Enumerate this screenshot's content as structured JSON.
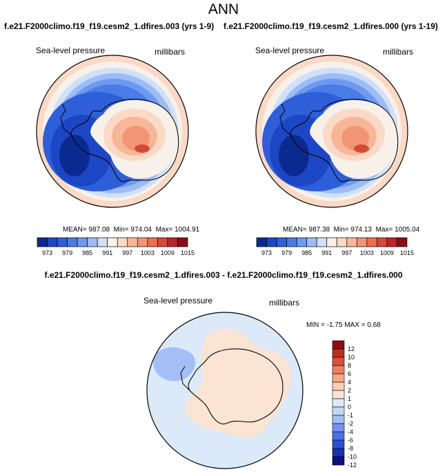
{
  "title": "ANN",
  "diff_title": "f.e21.F2000climo.f19_f19.cesm2_1.dfires.003 - f.e21.F2000climo.f19_f19.cesm2_1.dfires.000",
  "colors": {
    "pressure_scale": [
      "#0b2a91",
      "#1c46c4",
      "#2e5fd8",
      "#4a7ce6",
      "#6d9af0",
      "#9dbcf5",
      "#cfe0f8",
      "#f7f1ea",
      "#fbd9c7",
      "#f7b797",
      "#f29574",
      "#e8704f",
      "#d6493a",
      "#b8262c",
      "#8c0d18"
    ],
    "diff_scale": [
      "#0b0f80",
      "#1530b8",
      "#2850d8",
      "#4c6ee6",
      "#7393ee",
      "#a4bff5",
      "#c3d8f6",
      "#dbe9f9",
      "#fbe4d4",
      "#fbcdb3",
      "#f6a783",
      "#ee7f5c",
      "#db5037",
      "#c02a1f",
      "#8f0c12"
    ]
  },
  "chart_data": [
    {
      "type": "heatmap",
      "title": "f.e21.F2000climo.f19_f19.cesm2_1.dfires.003 (yrs 1-9)",
      "variable": "Sea-level pressure",
      "units": "millibars",
      "stats": {
        "mean_label": "MEAN=",
        "mean": "987.08",
        "min_label": "Min=",
        "min": "974.04",
        "max_label": "Max=",
        "max": "1004.91"
      },
      "colorbar_levels": [
        "973",
        "976",
        "979",
        "982",
        "985",
        "988",
        "991",
        "994",
        "997",
        "1000",
        "1003",
        "1006",
        "1009",
        "1012",
        "1015"
      ],
      "colorbar_tick_labels": [
        "973",
        "979",
        "985",
        "991",
        "997",
        "1003",
        "1009",
        "1015"
      ],
      "projection": "polar stereographic, south pole"
    },
    {
      "type": "heatmap",
      "title": "f.e21.F2000climo.f19_f19.cesm2_1.dfires.000 (yrs 1-19)",
      "variable": "Sea-level pressure",
      "units": "millibars",
      "stats": {
        "mean_label": "MEAN=",
        "mean": "987.38",
        "min_label": "Min=",
        "min": "974.13",
        "max_label": "Max=",
        "max": "1005.04"
      },
      "colorbar_levels": [
        "973",
        "976",
        "979",
        "982",
        "985",
        "988",
        "991",
        "994",
        "997",
        "1000",
        "1003",
        "1006",
        "1009",
        "1012",
        "1015"
      ],
      "colorbar_tick_labels": [
        "973",
        "979",
        "985",
        "991",
        "997",
        "1003",
        "1009",
        "1015"
      ],
      "projection": "polar stereographic, south pole"
    },
    {
      "type": "heatmap",
      "title": "f.e21.F2000climo.f19_f19.cesm2_1.dfires.003 - f.e21.F2000climo.f19_f19.cesm2_1.dfires.000",
      "variable": "Sea-level pressure",
      "units": "millibars",
      "stats": {
        "min_label": "MIN =",
        "min": "-1.75",
        "max_label": "MAX =",
        "max": "0.68"
      },
      "colorbar_tick_labels": [
        "12",
        "10",
        "8",
        "6",
        "4",
        "2",
        "1",
        "0",
        "-1",
        "-2",
        "-4",
        "-6",
        "-8",
        "-10",
        "-12"
      ],
      "projection": "polar stereographic, south pole"
    }
  ]
}
